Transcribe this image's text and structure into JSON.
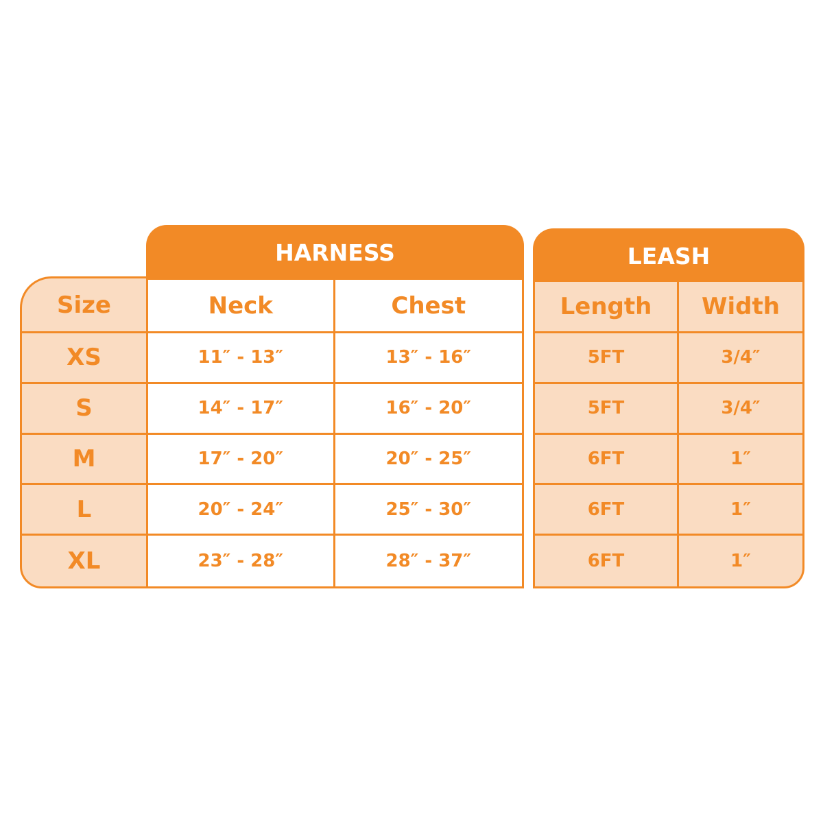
{
  "colors": {
    "accent": "#F28A26",
    "peach": "#FADCC2"
  },
  "size_column": {
    "header": "Size",
    "sizes": [
      "XS",
      "S",
      "M",
      "L",
      "XL"
    ]
  },
  "harness": {
    "title": "HARNESS",
    "columns": [
      "Neck",
      "Chest"
    ],
    "rows": [
      [
        "11″ - 13″",
        "13″ - 16″"
      ],
      [
        "14″ - 17″",
        "16″ - 20″"
      ],
      [
        "17″ - 20″",
        "20″ - 25″"
      ],
      [
        "20″ - 24″",
        "25″ - 30″"
      ],
      [
        "23″ - 28″",
        "28″ - 37″"
      ]
    ]
  },
  "leash": {
    "title": "LEASH",
    "columns": [
      "Length",
      "Width"
    ],
    "rows": [
      [
        "5FT",
        "3/4″"
      ],
      [
        "5FT",
        "3/4″"
      ],
      [
        "6FT",
        "1″"
      ],
      [
        "6FT",
        "1″"
      ],
      [
        "6FT",
        "1″"
      ]
    ]
  }
}
